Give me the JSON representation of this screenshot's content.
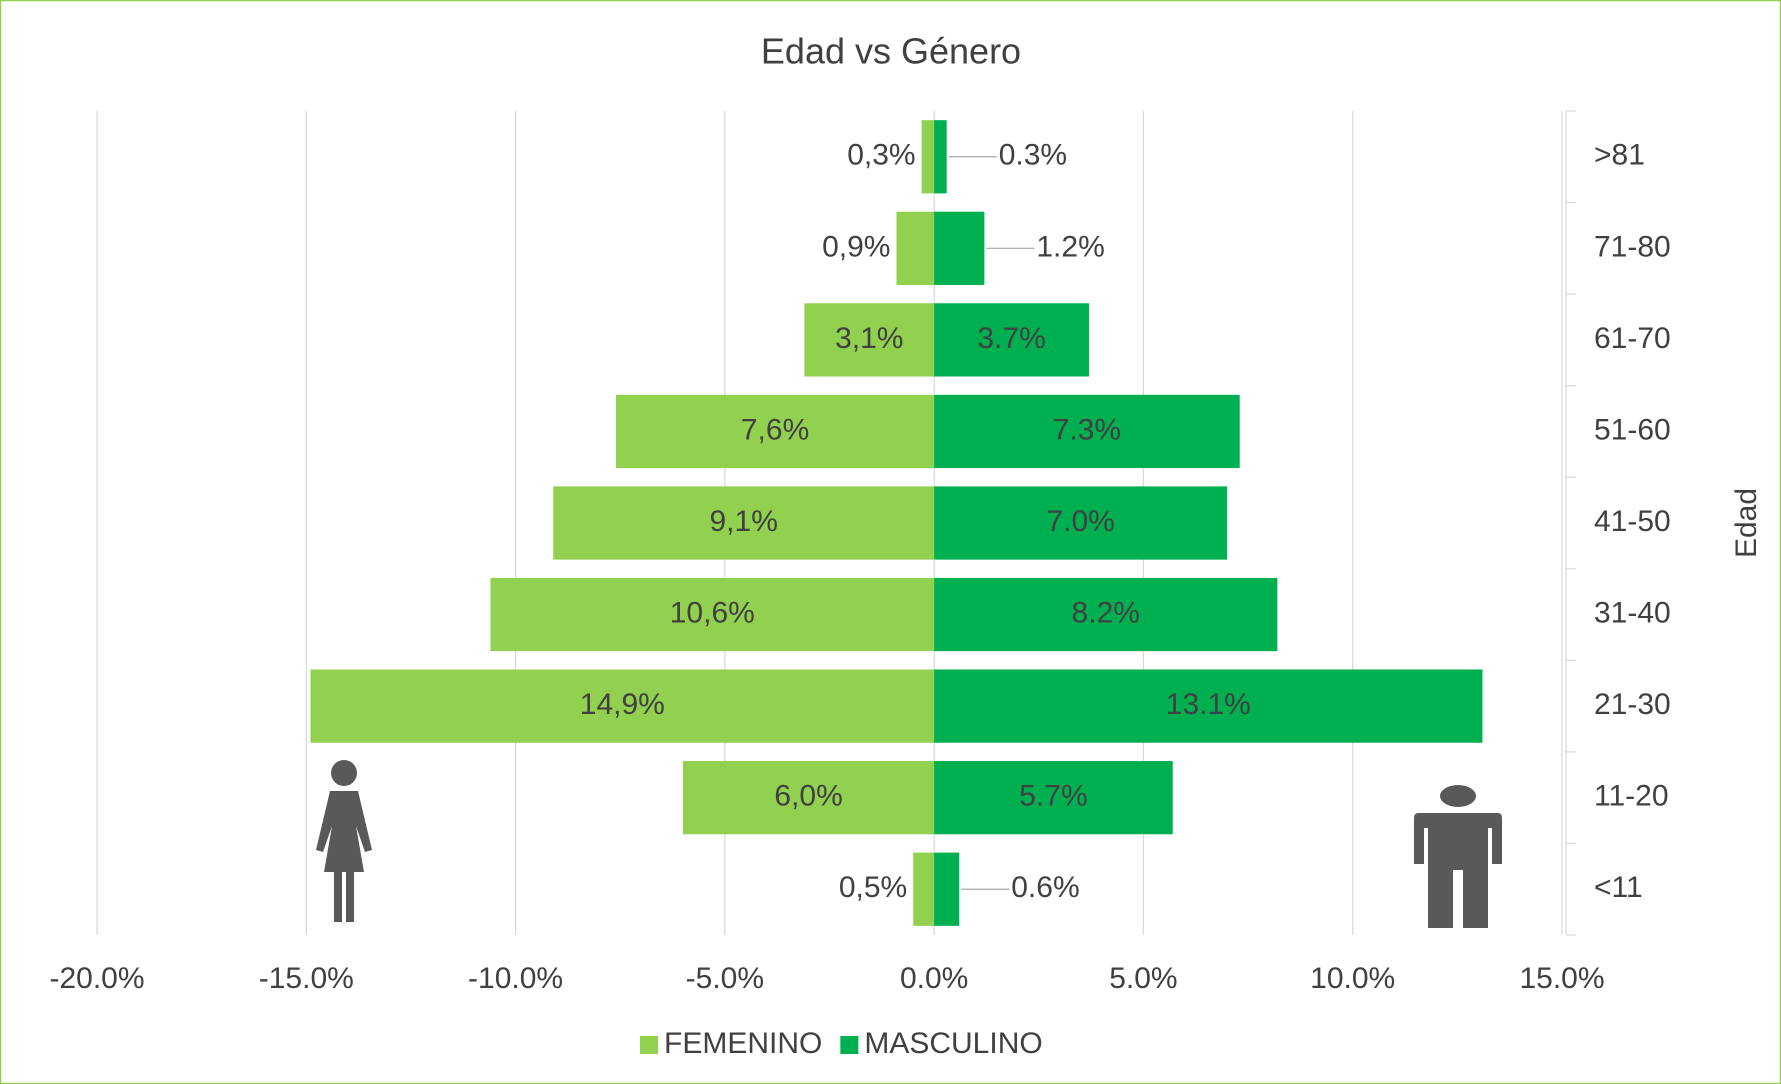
{
  "chart_data": {
    "type": "bar",
    "orientation": "horizontal",
    "title": "Edad vs Género",
    "y_label": "Edad",
    "categories": [
      ">81",
      "71-80",
      "61-70",
      "51-60",
      "41-50",
      "31-40",
      "21-30",
      "11-20",
      "<11"
    ],
    "series": [
      {
        "name": "FEMENINO",
        "color": "#92d050",
        "values": [
          -0.3,
          -0.9,
          -3.1,
          -7.6,
          -9.1,
          -10.6,
          -14.9,
          -6.0,
          -0.5
        ],
        "value_labels": [
          "0,3%",
          "0,9%",
          "3,1%",
          "7,6%",
          "9,1%",
          "10,6%",
          "14,9%",
          "6,0%",
          "0,5%"
        ]
      },
      {
        "name": "MASCULINO",
        "color": "#00b050",
        "values": [
          0.3,
          1.2,
          3.7,
          7.3,
          7.0,
          8.2,
          13.1,
          5.7,
          0.6
        ],
        "value_labels": [
          "0.3%",
          "1.2%",
          "3.7%",
          "7.3%",
          "7.0%",
          "8.2%",
          "13.1%",
          "5.7%",
          "0.6%"
        ]
      }
    ],
    "xlim": [
      -20,
      15
    ],
    "xticks": [
      {
        "value": -20,
        "label": "-20.0%"
      },
      {
        "value": -15,
        "label": "-15.0%"
      },
      {
        "value": -10,
        "label": "-10.0%"
      },
      {
        "value": -5,
        "label": "-5.0%"
      },
      {
        "value": 0,
        "label": "0.0%"
      },
      {
        "value": 5,
        "label": "5.0%"
      },
      {
        "value": 10,
        "label": "10.0%"
      },
      {
        "value": 15,
        "label": "15.0%"
      }
    ],
    "grid": true,
    "legend": "bottom"
  }
}
